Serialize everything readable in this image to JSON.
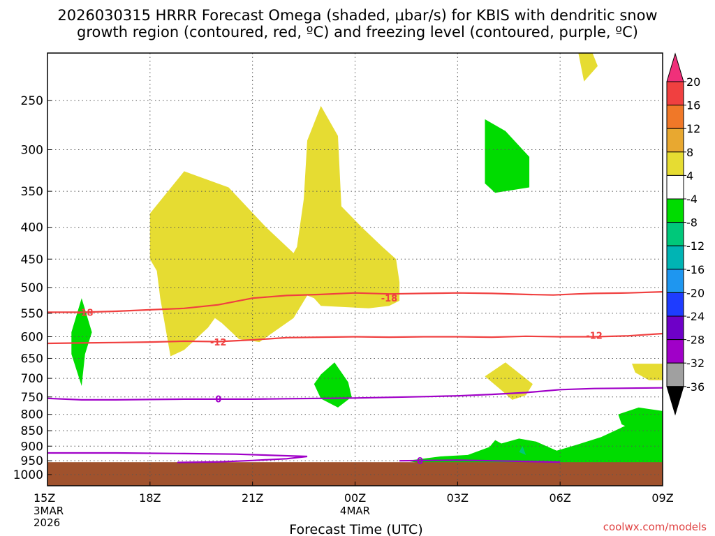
{
  "title": {
    "line1": "2026030315 HRRR Forecast Omega (shaded, μbar/s) for KBIS with dendritic snow",
    "line2": "growth region (contoured, red, ºC) and freezing level (contoured, purple, ºC)"
  },
  "chart_data": {
    "type": "time-height contour",
    "model": "HRRR",
    "init": "2026030315",
    "station": "KBIS",
    "xlabel": "Forecast Time (UTC)",
    "ylabel": "",
    "x_ticks": [
      {
        "hour": 0,
        "label": "15Z",
        "sub": [
          "3MAR",
          "2026"
        ]
      },
      {
        "hour": 3,
        "label": "18Z",
        "sub": []
      },
      {
        "hour": 6,
        "label": "21Z",
        "sub": []
      },
      {
        "hour": 9,
        "label": "00Z",
        "sub": [
          "4MAR"
        ]
      },
      {
        "hour": 12,
        "label": "03Z",
        "sub": []
      },
      {
        "hour": 15,
        "label": "06Z",
        "sub": []
      },
      {
        "hour": 18,
        "label": "09Z",
        "sub": []
      }
    ],
    "xlim": [
      0,
      18
    ],
    "y_ticks": [
      250,
      300,
      350,
      400,
      450,
      500,
      550,
      600,
      650,
      700,
      750,
      800,
      850,
      900,
      950,
      1000
    ],
    "ylim_hpa": [
      200,
      1050
    ],
    "ground_below_hpa": 955,
    "colorbar": {
      "labels": [
        "20",
        "16",
        "12",
        "8",
        "4",
        "-4",
        "-8",
        "-12",
        "-16",
        "-20",
        "-24",
        "-28",
        "-32",
        "-36"
      ],
      "colors": [
        "#f0307a",
        "#f04040",
        "#f07828",
        "#e8a830",
        "#e6dc32",
        "#ffffff",
        "#00dc00",
        "#00c87a",
        "#00b4b4",
        "#1e96f0",
        "#1e3cff",
        "#6e00c8",
        "#a000c8",
        "#a0a0a0",
        "#000000"
      ]
    },
    "omega_regions": [
      {
        "level": "4 to 8",
        "color": "#e6dc32",
        "points": [
          [
            3.0,
            380
          ],
          [
            4.0,
            325
          ],
          [
            4.2,
            328
          ],
          [
            5.3,
            345
          ],
          [
            6.4,
            400
          ],
          [
            7.2,
            440
          ],
          [
            7.3,
            430
          ],
          [
            7.5,
            360
          ],
          [
            7.6,
            290
          ],
          [
            8.0,
            255
          ],
          [
            8.5,
            285
          ],
          [
            8.6,
            370
          ],
          [
            9.2,
            400
          ],
          [
            9.8,
            430
          ],
          [
            10.2,
            450
          ],
          [
            10.3,
            490
          ],
          [
            10.3,
            525
          ],
          [
            10.0,
            535
          ],
          [
            9.4,
            540
          ],
          [
            8.0,
            535
          ],
          [
            7.8,
            520
          ],
          [
            7.6,
            515
          ],
          [
            7.2,
            560
          ],
          [
            6.2,
            612
          ],
          [
            5.6,
            605
          ],
          [
            5.1,
            570
          ],
          [
            4.9,
            560
          ],
          [
            4.7,
            580
          ],
          [
            4.0,
            630
          ],
          [
            3.6,
            645
          ],
          [
            3.3,
            520
          ],
          [
            3.2,
            470
          ],
          [
            3.0,
            450
          ]
        ]
      },
      {
        "level": "4 to 8",
        "color": "#e6dc32",
        "points": [
          [
            15.8,
            200
          ],
          [
            16.1,
            220
          ],
          [
            15.7,
            233
          ],
          [
            15.5,
            205
          ]
        ]
      },
      {
        "level": "4 to 8",
        "color": "#e6dc32",
        "points": [
          [
            12.8,
            695
          ],
          [
            13.4,
            660
          ],
          [
            14.2,
            715
          ],
          [
            14.0,
            745
          ],
          [
            13.6,
            758
          ],
          [
            13.3,
            733
          ]
        ]
      },
      {
        "level": "4 to 8",
        "color": "#e6dc32",
        "points": [
          [
            17.1,
            663
          ],
          [
            18.0,
            663
          ],
          [
            18.0,
            705
          ],
          [
            17.6,
            705
          ],
          [
            17.2,
            685
          ]
        ]
      },
      {
        "level": "-4 to -8",
        "color": "#00dc00",
        "points": [
          [
            12.8,
            268
          ],
          [
            13.4,
            280
          ],
          [
            14.1,
            308
          ],
          [
            14.1,
            345
          ],
          [
            13.1,
            352
          ],
          [
            12.8,
            340
          ]
        ]
      },
      {
        "level": "-4 to -8",
        "color": "#00dc00",
        "points": [
          [
            1.0,
            520
          ],
          [
            1.3,
            590
          ],
          [
            1.1,
            640
          ],
          [
            1.0,
            720
          ],
          [
            0.7,
            640
          ],
          [
            0.7,
            590
          ]
        ]
      },
      {
        "level": "-4 to -8",
        "color": "#00dc00",
        "points": [
          [
            8.0,
            690
          ],
          [
            8.4,
            660
          ],
          [
            8.8,
            710
          ],
          [
            8.9,
            750
          ],
          [
            8.5,
            780
          ],
          [
            8.0,
            755
          ],
          [
            7.8,
            715
          ]
        ]
      },
      {
        "level": "-4 to -8",
        "color": "#00dc00",
        "points": [
          [
            13.1,
            880
          ],
          [
            13.5,
            905
          ],
          [
            13.7,
            930
          ],
          [
            13.2,
            960
          ],
          [
            12.6,
            950
          ]
        ]
      },
      {
        "level": "-4 to -8",
        "color": "#00dc00",
        "points": [
          [
            10.5,
            950
          ],
          [
            11.5,
            935
          ],
          [
            12.3,
            930
          ],
          [
            13.0,
            900
          ],
          [
            13.8,
            875
          ],
          [
            14.3,
            885
          ],
          [
            14.9,
            915
          ],
          [
            15.5,
            895
          ],
          [
            16.2,
            870
          ],
          [
            17.0,
            830
          ],
          [
            18.0,
            825
          ],
          [
            18.0,
            960
          ],
          [
            15.0,
            960
          ],
          [
            13.0,
            965
          ],
          [
            11.0,
            960
          ]
        ]
      },
      {
        "level": "-4 to -8",
        "color": "#00dc00",
        "points": [
          [
            16.7,
            800
          ],
          [
            17.3,
            780
          ],
          [
            18.0,
            790
          ],
          [
            18.0,
            840
          ],
          [
            17.4,
            860
          ],
          [
            16.8,
            830
          ]
        ]
      },
      {
        "level": "-8 to -12",
        "color": "#00c87a",
        "points": [
          [
            13.8,
            920
          ],
          [
            13.9,
            900
          ],
          [
            14.0,
            930
          ]
        ]
      }
    ],
    "contours": [
      {
        "name": "dgz",
        "label": "-18",
        "color": "#f04040",
        "label_positions": [
          [
            1.1,
            548
          ],
          [
            10.0,
            520
          ]
        ],
        "points": [
          [
            0,
            548
          ],
          [
            1,
            548
          ],
          [
            2,
            546
          ],
          [
            3,
            543
          ],
          [
            4,
            540
          ],
          [
            5,
            533
          ],
          [
            6,
            520
          ],
          [
            7,
            515
          ],
          [
            8,
            513
          ],
          [
            9,
            510
          ],
          [
            10,
            512
          ],
          [
            11,
            511
          ],
          [
            12,
            510
          ],
          [
            13,
            511
          ],
          [
            14,
            513
          ],
          [
            14.8,
            514
          ],
          [
            15.5,
            512
          ],
          [
            16,
            511
          ],
          [
            17,
            510
          ],
          [
            18,
            508
          ]
        ]
      },
      {
        "name": "dgz",
        "label": "-12",
        "color": "#f04040",
        "label_positions": [
          [
            5.0,
            612
          ],
          [
            16.0,
            597
          ]
        ],
        "points": [
          [
            0,
            615
          ],
          [
            1,
            614
          ],
          [
            2,
            613
          ],
          [
            3,
            612
          ],
          [
            4,
            610
          ],
          [
            5,
            611
          ],
          [
            6,
            607
          ],
          [
            7,
            602
          ],
          [
            8,
            601
          ],
          [
            9,
            600
          ],
          [
            10,
            601
          ],
          [
            11,
            600
          ],
          [
            12,
            600
          ],
          [
            13,
            601
          ],
          [
            14,
            599
          ],
          [
            15,
            600
          ],
          [
            16,
            600
          ],
          [
            17,
            598
          ],
          [
            18,
            593
          ]
        ]
      },
      {
        "name": "freezing-level",
        "label": "0",
        "color": "#a000c8",
        "label_positions": [
          [
            5.0,
            755
          ]
        ],
        "points": [
          [
            0,
            754
          ],
          [
            1,
            758
          ],
          [
            2,
            758
          ],
          [
            3,
            757
          ],
          [
            4,
            756
          ],
          [
            5,
            756
          ],
          [
            6,
            756
          ],
          [
            7,
            755
          ],
          [
            8,
            754
          ],
          [
            9,
            753
          ],
          [
            10,
            751
          ],
          [
            11,
            749
          ],
          [
            12,
            747
          ],
          [
            13,
            743
          ],
          [
            14,
            738
          ],
          [
            15,
            730
          ],
          [
            16,
            727
          ],
          [
            17,
            726
          ],
          [
            18,
            725
          ]
        ]
      },
      {
        "name": "freezing-level-low",
        "label": "",
        "color": "#a000c8",
        "label_positions": [],
        "points": [
          [
            0,
            923
          ],
          [
            2,
            923
          ],
          [
            4,
            925
          ],
          [
            5.5,
            927
          ],
          [
            7.6,
            935
          ],
          [
            7.0,
            943
          ],
          [
            6.0,
            949
          ],
          [
            5.0,
            954
          ],
          [
            3.8,
            956
          ]
        ]
      },
      {
        "name": "freezing-level-low",
        "label": "0",
        "color": "#a000c8",
        "label_positions": [
          [
            10.9,
            950
          ]
        ],
        "points": [
          [
            10.3,
            950
          ],
          [
            12,
            948
          ],
          [
            13,
            950
          ],
          [
            15,
            955
          ]
        ]
      }
    ],
    "credit": "coolwx.com/models"
  }
}
